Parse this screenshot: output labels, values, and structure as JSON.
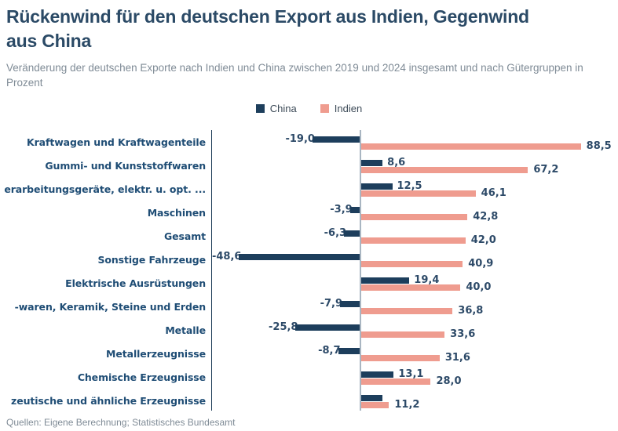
{
  "header": {
    "title": "Rückenwind für den deutschen Export aus Indien, Gegenwind\naus China",
    "subtitle": "Veränderung der deutschen Exporte nach Indien und China zwischen 2019 und 2024 insgesamt und nach Gütergruppen in\nProzent"
  },
  "legend": {
    "items": [
      {
        "label": "China"
      },
      {
        "label": "Indien"
      }
    ]
  },
  "colors": {
    "china": "#1d3e5c",
    "indien": "#ef9c8f",
    "zero_line": "#a9b6c2",
    "plot_border": "#1b3a55",
    "category_text": "#1f4d75",
    "value_text": "#2d4a68",
    "title_text": "#2b4a66",
    "muted_text": "#7f8b96"
  },
  "footer": {
    "source": "Quellen: Eigene Berechnung; Statistisches Bundesamt"
  },
  "chart_data": {
    "type": "bar",
    "orientation": "horizontal",
    "unit": "percent",
    "value_format": "decimal comma, one decimal place",
    "grid": false,
    "legend_position": "top-center",
    "xlim": [
      -60,
      104
    ],
    "categories": [
      "Kraftwagen und Kraftwagenteile",
      "Gummi- und Kunststoffwaren",
      "erarbeitungsgeräte, elektr. u. opt. ...",
      "Maschinen",
      "Gesamt",
      "Sonstige Fahrzeuge",
      "Elektrische Ausrüstungen",
      "-waren, Keramik, Steine und Erden",
      "Metalle",
      "Metallerzeugnisse",
      "Chemische Erzeugnisse",
      "zeutische und ähnliche Erzeugnisse"
    ],
    "series": [
      {
        "name": "China",
        "values": [
          -19.0,
          8.6,
          12.5,
          -3.9,
          -6.3,
          -48.6,
          19.4,
          -7.9,
          -25.8,
          -8.7,
          13.1,
          8.6
        ],
        "labels": [
          "-19,0",
          "8,6",
          "12,5",
          "-3,9",
          "-6,3",
          "-48,6",
          "19,4",
          "-7,9",
          "-25,8",
          "-8,7",
          "13,1",
          ""
        ]
      },
      {
        "name": "Indien",
        "values": [
          88.5,
          67.2,
          46.1,
          42.8,
          42.0,
          40.9,
          40.0,
          36.8,
          33.6,
          31.6,
          28.0,
          11.2
        ],
        "labels": [
          "88,5",
          "67,2",
          "46,1",
          "42,8",
          "42,0",
          "40,9",
          "40,0",
          "36,8",
          "33,6",
          "31,6",
          "28,0",
          "11,2"
        ]
      }
    ]
  }
}
